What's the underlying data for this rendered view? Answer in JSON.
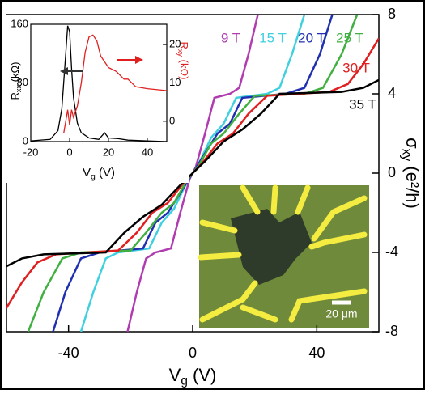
{
  "chart_data": [
    {
      "type": "line",
      "x_label": {
        "main": "V",
        "sub": "g",
        "unit": " (V)"
      },
      "y_label": {
        "main": "σ",
        "sub": "xy",
        "unit": " (e²/h)"
      },
      "xlim": [
        -60,
        60
      ],
      "ylim": [
        -8,
        8
      ],
      "xticks": [
        -40,
        0,
        40
      ],
      "yticks": [
        -8,
        -4,
        0,
        4,
        8
      ],
      "series": [
        {
          "name": "9 T",
          "color": "#b03cb0",
          "x": [
            -21,
            -18,
            -15,
            -12,
            -7,
            -4,
            -1,
            0,
            1,
            4,
            7,
            12,
            15,
            18,
            21
          ],
          "values": [
            -8,
            -6,
            -4.3,
            -4,
            -3.8,
            -2,
            -0.3,
            0,
            0.3,
            2,
            3.8,
            4,
            4.3,
            6,
            8
          ]
        },
        {
          "name": "15 T",
          "color": "#40d0e0",
          "x": [
            -36,
            -32,
            -28,
            -24,
            -14,
            -10,
            -6,
            -2,
            0,
            2,
            6,
            10,
            14,
            24,
            28,
            32,
            36
          ],
          "values": [
            -8,
            -6,
            -4.3,
            -4,
            -3.8,
            -2.5,
            -1.8,
            -0.5,
            0,
            0.5,
            1.8,
            2.5,
            3.8,
            4,
            4.3,
            6,
            8
          ]
        },
        {
          "name": "20 T",
          "color": "#2030b0",
          "x": [
            -45,
            -41,
            -36,
            -30,
            -16,
            -12,
            -8,
            -4,
            0,
            4,
            8,
            12,
            16,
            30,
            36,
            41,
            45
          ],
          "values": [
            -8,
            -6,
            -4.3,
            -4,
            -3.8,
            -2.5,
            -2,
            -1,
            0,
            1,
            2,
            2.5,
            3.8,
            4,
            4.3,
            6,
            8
          ]
        },
        {
          "name": "25 T",
          "color": "#40b040",
          "x": [
            -53,
            -48,
            -42,
            -36,
            -20,
            -15,
            -10,
            -6,
            -2,
            0,
            2,
            6,
            10,
            15,
            20,
            36,
            42,
            48,
            53
          ],
          "values": [
            -8,
            -6,
            -4.3,
            -4,
            -3.9,
            -3,
            -2,
            -1.5,
            -0.4,
            0,
            0.4,
            1.5,
            2,
            3,
            3.9,
            4,
            4.3,
            6,
            8
          ]
        },
        {
          "name": "30 T",
          "color": "#e02020",
          "x": [
            -60,
            -55,
            -50,
            -44,
            -24,
            -18,
            -13,
            -8,
            -3,
            0,
            3,
            8,
            13,
            18,
            24,
            44,
            50,
            55,
            60
          ],
          "values": [
            -6.8,
            -5.5,
            -4.5,
            -4.1,
            -3.9,
            -3,
            -2,
            -1.5,
            -0.5,
            0,
            0.5,
            1.5,
            2,
            3,
            3.9,
            4.1,
            4.5,
            5.5,
            6.8
          ]
        },
        {
          "name": "35 T",
          "color": "#000000",
          "x": [
            -60,
            -55,
            -48,
            -28,
            -22,
            -16,
            -10,
            -4,
            0,
            4,
            10,
            16,
            22,
            28,
            48,
            55,
            60
          ],
          "values": [
            -4.7,
            -4.3,
            -4.1,
            -4,
            -3,
            -2.2,
            -1.6,
            -0.6,
            0,
            0.6,
            1.6,
            2.2,
            3,
            4,
            4.1,
            4.3,
            4.7
          ]
        }
      ],
      "scale_bar": "20 μm"
    },
    {
      "type": "line",
      "x_label": {
        "main": "V",
        "sub": "g",
        "unit": " (V)"
      },
      "y_label": {
        "main": "R",
        "sub": "xx",
        "unit": " (kΩ)"
      },
      "y2_label": {
        "main": "R",
        "sub": "xy",
        "unit": " (kΩ)"
      },
      "xlim": [
        -20,
        50
      ],
      "ylim": [
        0,
        160
      ],
      "y2lim": [
        -5.3,
        25.3
      ],
      "xticks": [
        -20,
        0,
        20,
        40
      ],
      "yticks": [
        0,
        80,
        160
      ],
      "y2ticks": [
        0,
        10,
        20
      ],
      "series": [
        {
          "name": "R_xx",
          "color": "#000000",
          "x": [
            -20,
            -10,
            -6,
            -4,
            -2,
            -1,
            0,
            1,
            2,
            4,
            6,
            10,
            15,
            18,
            20,
            25,
            30,
            40,
            50
          ],
          "values": [
            1,
            3,
            15,
            45,
            120,
            158,
            150,
            100,
            60,
            25,
            12,
            5,
            3,
            12,
            5,
            4,
            2,
            1,
            0
          ]
        },
        {
          "name": "R_xy",
          "color": "#e02020",
          "axis": "y2",
          "x": [
            -3,
            -1,
            0,
            1,
            2,
            4,
            6,
            8,
            10,
            12,
            14,
            16,
            20,
            24,
            28,
            30,
            34,
            40,
            50
          ],
          "values": [
            -3,
            3,
            -1,
            3,
            1,
            4,
            10,
            18,
            22,
            22.5,
            21,
            17,
            14,
            13,
            11,
            11,
            9,
            8.5,
            8
          ]
        }
      ]
    }
  ]
}
